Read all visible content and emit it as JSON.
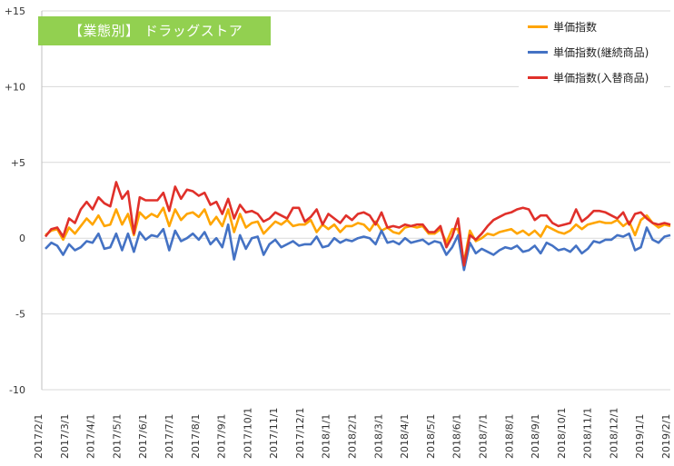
{
  "chart_data": {
    "type": "line",
    "title": "【業態別】 ドラッグストア",
    "xlabel": "",
    "ylabel": "",
    "ylim": [
      -10,
      15
    ],
    "yticks": [
      "+15",
      "+10",
      "+5",
      "0",
      "-5",
      "-10"
    ],
    "ytick_values": [
      15,
      10,
      5,
      0,
      -5,
      -10
    ],
    "grid": "horizontal",
    "legend_position": "top-right",
    "x_labels": [
      "2017/2/1",
      "2017/3/1",
      "2017/4/1",
      "2017/5/1",
      "2017/6/1",
      "2017/7/1",
      "2017/8/1",
      "2017/9/1",
      "2017/10/1",
      "2017/11/1",
      "2017/12/1",
      "2018/1/1",
      "2018/2/1",
      "2018/3/1",
      "2018/4/1",
      "2018/5/1",
      "2018/6/1",
      "2018/7/1",
      "2018/8/1",
      "2018/9/1",
      "2018/10/1",
      "2018/11/1",
      "2018/12/1",
      "2019/1/1",
      "2019/2/1"
    ],
    "series": [
      {
        "name": "単価指数",
        "color": "#ffa500",
        "values": [
          0.2,
          0.5,
          0.6,
          -0.1,
          0.7,
          0.3,
          0.8,
          1.3,
          0.9,
          1.5,
          0.8,
          0.9,
          1.9,
          0.9,
          1.6,
          0.2,
          1.7,
          1.3,
          1.6,
          1.4,
          2.0,
          0.8,
          1.9,
          1.2,
          1.6,
          1.7,
          1.4,
          1.9,
          0.9,
          1.4,
          0.8,
          1.9,
          0.4,
          1.6,
          0.7,
          1.0,
          1.1,
          0.3,
          0.7,
          1.1,
          0.9,
          1.2,
          0.8,
          0.9,
          0.9,
          1.2,
          0.4,
          0.9,
          0.6,
          0.9,
          0.4,
          0.8,
          0.8,
          1.0,
          0.9,
          0.5,
          1.1,
          0.5,
          0.7,
          0.4,
          0.3,
          0.7,
          0.8,
          0.7,
          0.8,
          0.3,
          0.3,
          0.6,
          -0.3,
          0.6,
          0.6,
          -1.6,
          0.5,
          -0.2,
          0.0,
          0.3,
          0.2,
          0.4,
          0.5,
          0.6,
          0.3,
          0.5,
          0.2,
          0.5,
          0.1,
          0.8,
          0.6,
          0.4,
          0.3,
          0.5,
          0.9,
          0.6,
          0.9,
          1.0,
          1.1,
          1.0,
          1.0,
          1.2,
          0.8,
          1.1,
          0.2,
          1.2,
          1.5,
          1.0,
          0.7,
          0.9,
          0.8
        ]
      },
      {
        "name": "単価指数(継続商品)",
        "color": "#4472c4",
        "values": [
          -0.7,
          -0.3,
          -0.5,
          -1.1,
          -0.4,
          -0.8,
          -0.6,
          -0.2,
          -0.3,
          0.3,
          -0.7,
          -0.6,
          0.3,
          -0.8,
          0.3,
          -0.9,
          0.4,
          -0.1,
          0.2,
          0.1,
          0.6,
          -0.8,
          0.5,
          -0.2,
          0.0,
          0.3,
          -0.1,
          0.4,
          -0.4,
          0.0,
          -0.6,
          0.9,
          -1.4,
          0.2,
          -0.7,
          0.0,
          0.1,
          -1.1,
          -0.4,
          -0.1,
          -0.6,
          -0.4,
          -0.2,
          -0.5,
          -0.4,
          -0.4,
          0.1,
          -0.6,
          -0.5,
          0.0,
          -0.3,
          -0.1,
          -0.2,
          0.0,
          0.1,
          0.0,
          -0.4,
          0.5,
          -0.3,
          -0.2,
          -0.4,
          0.0,
          -0.3,
          -0.2,
          -0.1,
          -0.4,
          -0.2,
          -0.3,
          -1.1,
          -0.6,
          0.2,
          -2.1,
          -0.3,
          -1.0,
          -0.7,
          -0.9,
          -1.1,
          -0.8,
          -0.6,
          -0.7,
          -0.5,
          -0.9,
          -0.8,
          -0.5,
          -1.0,
          -0.3,
          -0.5,
          -0.8,
          -0.7,
          -0.9,
          -0.5,
          -1.0,
          -0.7,
          -0.2,
          -0.3,
          -0.1,
          -0.1,
          0.2,
          0.1,
          0.3,
          -0.8,
          -0.6,
          0.7,
          -0.1,
          -0.3,
          0.1,
          0.2
        ]
      },
      {
        "name": "単価指数(入替商品)",
        "color": "#e0302a",
        "values": [
          0.1,
          0.6,
          0.7,
          0.1,
          1.3,
          1.0,
          1.9,
          2.4,
          1.9,
          2.7,
          2.3,
          2.1,
          3.7,
          2.6,
          3.1,
          0.3,
          2.7,
          2.5,
          2.5,
          2.5,
          3.0,
          1.8,
          3.4,
          2.6,
          3.2,
          3.1,
          2.8,
          3.0,
          2.2,
          2.4,
          1.6,
          2.6,
          1.3,
          2.2,
          1.7,
          1.8,
          1.6,
          1.1,
          1.3,
          1.7,
          1.5,
          1.3,
          2.0,
          2.0,
          1.1,
          1.4,
          1.9,
          0.9,
          1.6,
          1.3,
          1.0,
          1.5,
          1.2,
          1.6,
          1.7,
          1.5,
          0.9,
          1.7,
          0.7,
          0.8,
          0.7,
          0.9,
          0.8,
          0.9,
          0.9,
          0.4,
          0.4,
          0.8,
          -0.6,
          0.1,
          1.3,
          -1.8,
          0.2,
          -0.1,
          0.3,
          0.8,
          1.2,
          1.4,
          1.6,
          1.7,
          1.9,
          2.0,
          1.9,
          1.2,
          1.5,
          1.5,
          1.0,
          0.8,
          0.9,
          1.0,
          1.9,
          1.1,
          1.4,
          1.8,
          1.8,
          1.7,
          1.5,
          1.3,
          1.7,
          0.9,
          1.6,
          1.7,
          1.3,
          1.0,
          0.9,
          1.0,
          0.9
        ]
      }
    ]
  }
}
